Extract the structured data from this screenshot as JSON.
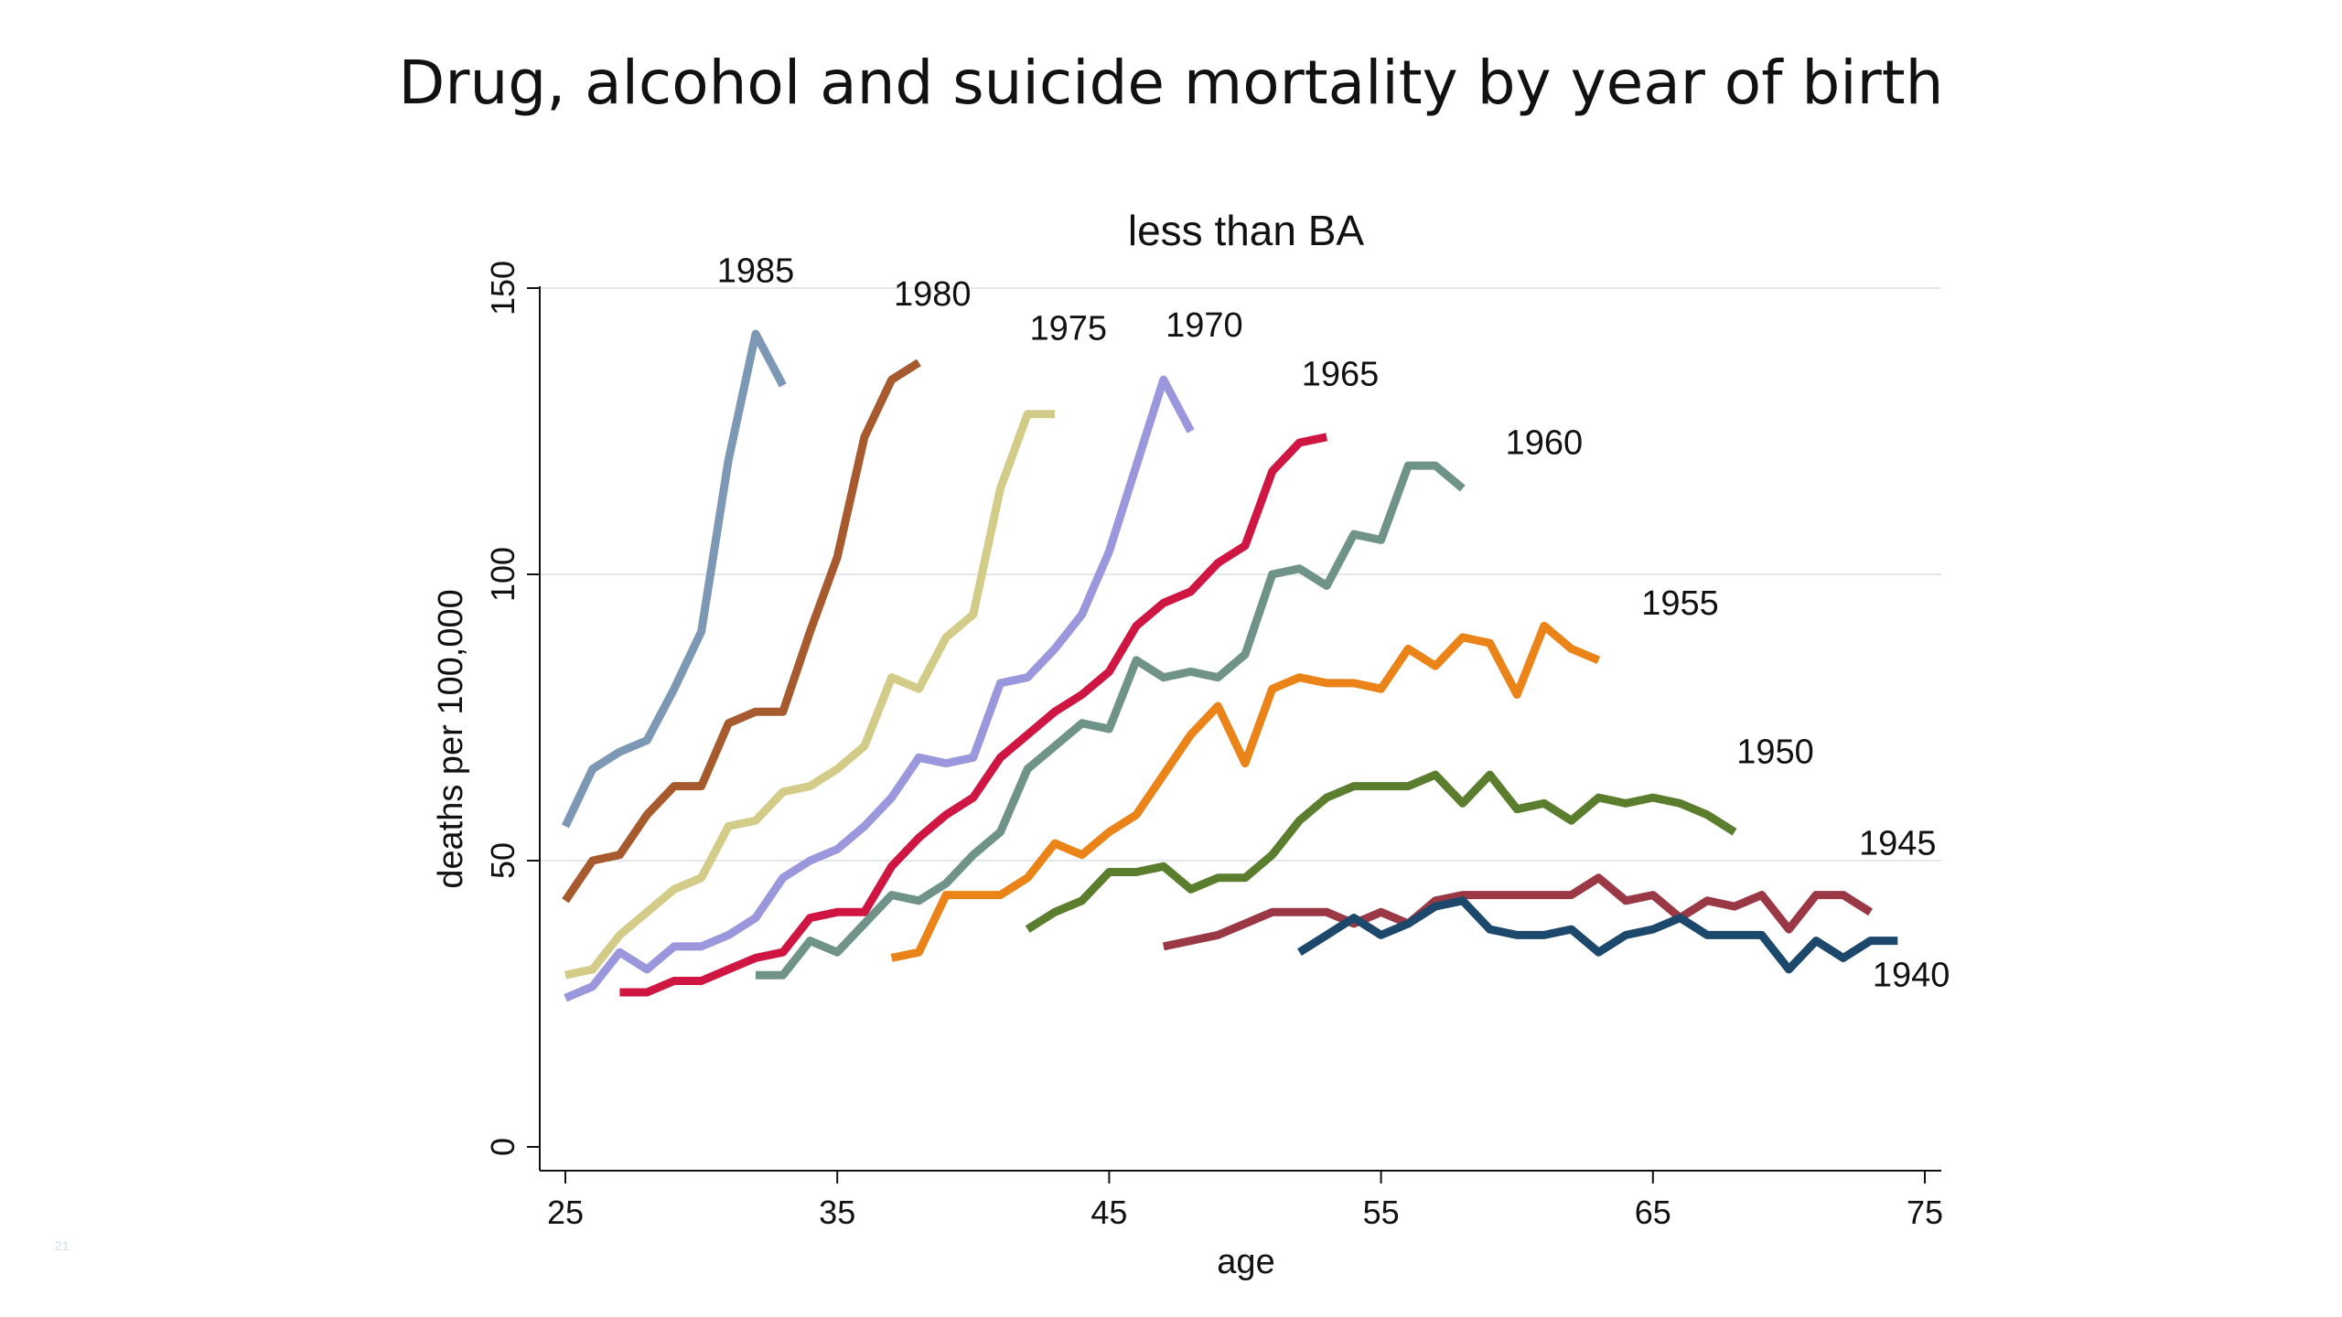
{
  "slide": {
    "title": "Drug, alcohol and suicide mortality by year of birth",
    "number": "21"
  },
  "chart_data": {
    "type": "line",
    "title": "less than BA",
    "xlabel": "age",
    "ylabel": "deaths per 100,000",
    "xlim": [
      25,
      75
    ],
    "ylim": [
      0,
      150
    ],
    "xticks": [
      25,
      35,
      45,
      55,
      65,
      75
    ],
    "yticks": [
      0,
      50,
      100,
      150
    ],
    "grid": true,
    "legend": "none",
    "series": [
      {
        "name": "1985",
        "color": "#7c98b4",
        "x": [
          25,
          26,
          27,
          28,
          29,
          30,
          31,
          32,
          33
        ],
        "y": [
          56,
          66,
          69,
          71,
          80,
          90,
          120,
          142,
          133
        ]
      },
      {
        "name": "1980",
        "color": "#a65a2e",
        "x": [
          25,
          26,
          27,
          28,
          29,
          30,
          31,
          32,
          33,
          34,
          35,
          36,
          37,
          38
        ],
        "y": [
          43,
          50,
          51,
          58,
          63,
          63,
          74,
          76,
          76,
          90,
          103,
          124,
          134,
          137
        ]
      },
      {
        "name": "1975",
        "color": "#d2cc88",
        "x": [
          25,
          26,
          27,
          28,
          29,
          30,
          31,
          32,
          33,
          34,
          35,
          36,
          37,
          38,
          39,
          40,
          41,
          42,
          43
        ],
        "y": [
          30,
          31,
          37,
          41,
          45,
          47,
          56,
          57,
          62,
          63,
          66,
          70,
          82,
          80,
          89,
          93,
          115,
          128,
          128
        ]
      },
      {
        "name": "1970",
        "color": "#9b97dc",
        "x": [
          25,
          26,
          27,
          28,
          29,
          30,
          31,
          32,
          33,
          34,
          35,
          36,
          37,
          38,
          39,
          40,
          41,
          42,
          43,
          44,
          45,
          46,
          47,
          48
        ],
        "y": [
          26,
          28,
          34,
          31,
          35,
          35,
          37,
          40,
          47,
          50,
          52,
          56,
          61,
          68,
          67,
          68,
          81,
          82,
          87,
          93,
          104,
          119,
          134,
          125
        ]
      },
      {
        "name": "1965",
        "color": "#cf1642",
        "x": [
          27,
          28,
          29,
          30,
          31,
          32,
          33,
          34,
          35,
          36,
          37,
          38,
          39,
          40,
          41,
          42,
          43,
          44,
          45,
          46,
          47,
          48,
          49,
          50,
          51,
          52,
          53
        ],
        "y": [
          27,
          27,
          29,
          29,
          31,
          33,
          34,
          40,
          41,
          41,
          49,
          54,
          58,
          61,
          68,
          72,
          76,
          79,
          83,
          91,
          95,
          97,
          102,
          105,
          118,
          123,
          124
        ]
      },
      {
        "name": "1960",
        "color": "#6f9388",
        "x": [
          32,
          33,
          34,
          35,
          36,
          37,
          38,
          39,
          40,
          41,
          42,
          43,
          44,
          45,
          46,
          47,
          48,
          49,
          50,
          51,
          52,
          53,
          54,
          55,
          56,
          57,
          58
        ],
        "y": [
          30,
          30,
          36,
          34,
          39,
          44,
          43,
          46,
          51,
          55,
          66,
          70,
          74,
          73,
          85,
          82,
          83,
          82,
          86,
          100,
          101,
          98,
          107,
          106,
          119,
          119,
          115
        ]
      },
      {
        "name": "1955",
        "color": "#ea8419",
        "x": [
          37,
          38,
          39,
          40,
          41,
          42,
          43,
          44,
          45,
          46,
          47,
          48,
          49,
          50,
          51,
          52,
          53,
          54,
          55,
          56,
          57,
          58,
          59,
          60,
          61,
          62,
          63
        ],
        "y": [
          33,
          34,
          44,
          44,
          44,
          47,
          53,
          51,
          55,
          58,
          65,
          72,
          77,
          67,
          80,
          82,
          81,
          81,
          80,
          87,
          84,
          89,
          88,
          79,
          91,
          87,
          85
        ]
      },
      {
        "name": "1950",
        "color": "#5a7d2e",
        "x": [
          42,
          43,
          44,
          45,
          46,
          47,
          48,
          49,
          50,
          51,
          52,
          53,
          54,
          55,
          56,
          57,
          58,
          59,
          60,
          61,
          62,
          63,
          64,
          65,
          66,
          67,
          68
        ],
        "y": [
          38,
          41,
          43,
          48,
          48,
          49,
          45,
          47,
          47,
          51,
          57,
          61,
          63,
          63,
          63,
          65,
          60,
          65,
          59,
          60,
          57,
          61,
          60,
          61,
          60,
          58,
          55
        ]
      },
      {
        "name": "1945",
        "color": "#9b3846",
        "x": [
          47,
          48,
          49,
          50,
          51,
          52,
          53,
          54,
          55,
          56,
          57,
          58,
          59,
          60,
          61,
          62,
          63,
          64,
          65,
          66,
          67,
          68,
          69,
          70,
          71,
          72,
          73
        ],
        "y": [
          35,
          36,
          37,
          39,
          41,
          41,
          41,
          39,
          41,
          39,
          43,
          44,
          44,
          44,
          44,
          44,
          47,
          43,
          44,
          40,
          43,
          42,
          44,
          38,
          44,
          44,
          41
        ]
      },
      {
        "name": "1940",
        "color": "#1c486c",
        "x": [
          52,
          53,
          54,
          55,
          56,
          57,
          58,
          59,
          60,
          61,
          62,
          63,
          64,
          65,
          66,
          67,
          68,
          69,
          70,
          71,
          72,
          73,
          74
        ],
        "y": [
          34,
          37,
          40,
          37,
          39,
          42,
          43,
          38,
          37,
          37,
          38,
          34,
          37,
          38,
          40,
          37,
          37,
          37,
          31,
          36,
          33,
          36,
          36
        ]
      }
    ],
    "series_label_positions": {
      "1985": [
        32,
        151
      ],
      "1980": [
        38.5,
        147
      ],
      "1975": [
        43.5,
        141
      ],
      "1970": [
        48.5,
        141.5
      ],
      "1965": [
        53.5,
        133
      ],
      "1960": [
        61,
        121
      ],
      "1955": [
        66,
        93
      ],
      "1950": [
        69.5,
        67
      ],
      "1945": [
        74,
        51
      ],
      "1940": [
        74.5,
        28
      ]
    }
  }
}
